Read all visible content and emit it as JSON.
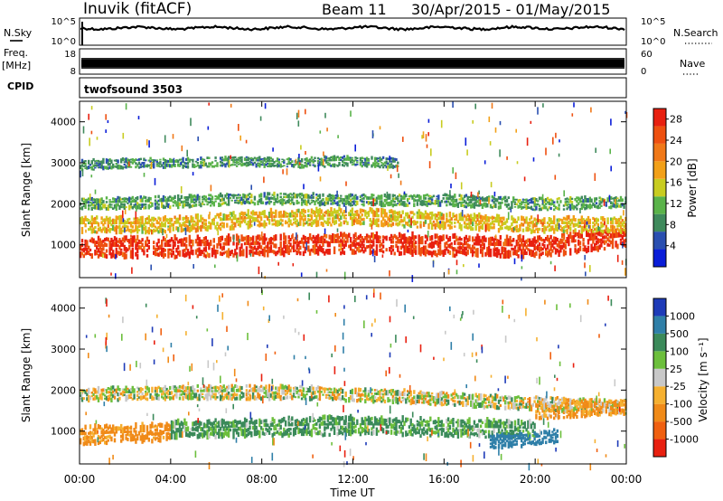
{
  "header": {
    "station": "Inuvik (fitACF)",
    "beam": "Beam 11",
    "date_range": "30/Apr/2015 - 01/May/2015"
  },
  "side_labels": {
    "nsky": "N.Sky",
    "nsearch": "N.Search",
    "freq": "Freq.",
    "freq_unit": "[MHz]",
    "nave": "Nave",
    "cpid": "CPID",
    "cpid_value": "twofsound 3503"
  },
  "mini_ticks": {
    "noise_left": [
      "10^5",
      "10^0"
    ],
    "noise_right": [
      "10^5",
      "10^0"
    ],
    "freq_left": [
      "18",
      "8"
    ],
    "freq_right": [
      "60",
      "0"
    ]
  },
  "colors": {
    "power": [
      "#0a1dd8",
      "#2a4fb0",
      "#3f8a5c",
      "#5ab34a",
      "#c8cc20",
      "#f2a018",
      "#f07818",
      "#ee5010",
      "#e82010"
    ],
    "velocity": [
      "#1e3bb8",
      "#2f7fa8",
      "#3b8a5a",
      "#6cbf3c",
      "#c8c8c8",
      "#f5b030",
      "#f08a18",
      "#f06010",
      "#e82010"
    ],
    "ground_scatter": "#bfbfbf"
  },
  "chart_data": [
    {
      "type": "heatmap",
      "panel": "power",
      "ylabel": "Slant Range [km]",
      "yticks": [
        "1000",
        "2000",
        "3000",
        "4000"
      ],
      "ylim": [
        200,
        4500
      ],
      "x_ticks": [
        "00:00",
        "04:00",
        "08:00",
        "12:00",
        "16:00",
        "20:00",
        "00:00"
      ],
      "x_range_hours": [
        0,
        24
      ],
      "colorbar_label": "Power [dB]",
      "colorbar_ticks": [
        "4",
        "8",
        "12",
        "16",
        "20",
        "24",
        "28"
      ],
      "colorbar_range": [
        0,
        30
      ],
      "bands": [
        {
          "hours": [
            0,
            24
          ],
          "range_center": [
            950,
            950,
            1000,
            1050,
            1000,
            950,
            1200
          ],
          "width": 500,
          "value": 27
        },
        {
          "hours": [
            0,
            24
          ],
          "range_center": [
            1500,
            1500,
            1650,
            1700,
            1600,
            1500,
            1500
          ],
          "width": 400,
          "value": 17
        },
        {
          "hours": [
            0,
            24
          ],
          "range_center": [
            2000,
            2050,
            2150,
            2100,
            2100,
            2000,
            2050
          ],
          "width": 300,
          "value": 10
        },
        {
          "hours": [
            0,
            14
          ],
          "range_center": [
            2950,
            3000,
            3000,
            3050,
            3000,
            3050,
            3000
          ],
          "width": 250,
          "value": 9
        }
      ]
    },
    {
      "type": "heatmap",
      "panel": "velocity",
      "ylabel": "Slant Range [km]",
      "yticks": [
        "1000",
        "2000",
        "3000",
        "4000"
      ],
      "ylim": [
        200,
        4500
      ],
      "x_ticks": [
        "00:00",
        "04:00",
        "08:00",
        "12:00",
        "16:00",
        "20:00",
        "00:00"
      ],
      "x_range_hours": [
        0,
        24
      ],
      "xlabel": "Time UT",
      "colorbar_label": "Velocity [m s⁻¹]",
      "colorbar_ticks": [
        "1000",
        "500",
        "100",
        "25",
        "-25",
        "-100",
        "-500",
        "-1000"
      ],
      "bands": [
        {
          "hours": [
            0,
            4
          ],
          "range_center": [
            900,
            950,
            1000
          ],
          "width": 450,
          "value": -200
        },
        {
          "hours": [
            4,
            20
          ],
          "range_center": [
            1050,
            1100,
            1150,
            1100,
            1050
          ],
          "width": 450,
          "value": 150
        },
        {
          "hours": [
            18,
            21
          ],
          "range_center": [
            750,
            800,
            900
          ],
          "width": 350,
          "value": 800
        },
        {
          "hours": [
            0,
            24
          ],
          "range_center": [
            1900,
            1950,
            1950,
            1850,
            1700,
            1600
          ],
          "width": 350,
          "value": 0
        },
        {
          "hours": [
            20,
            24
          ],
          "range_center": [
            1500,
            1550,
            1600
          ],
          "width": 400,
          "value": -150
        }
      ]
    }
  ]
}
